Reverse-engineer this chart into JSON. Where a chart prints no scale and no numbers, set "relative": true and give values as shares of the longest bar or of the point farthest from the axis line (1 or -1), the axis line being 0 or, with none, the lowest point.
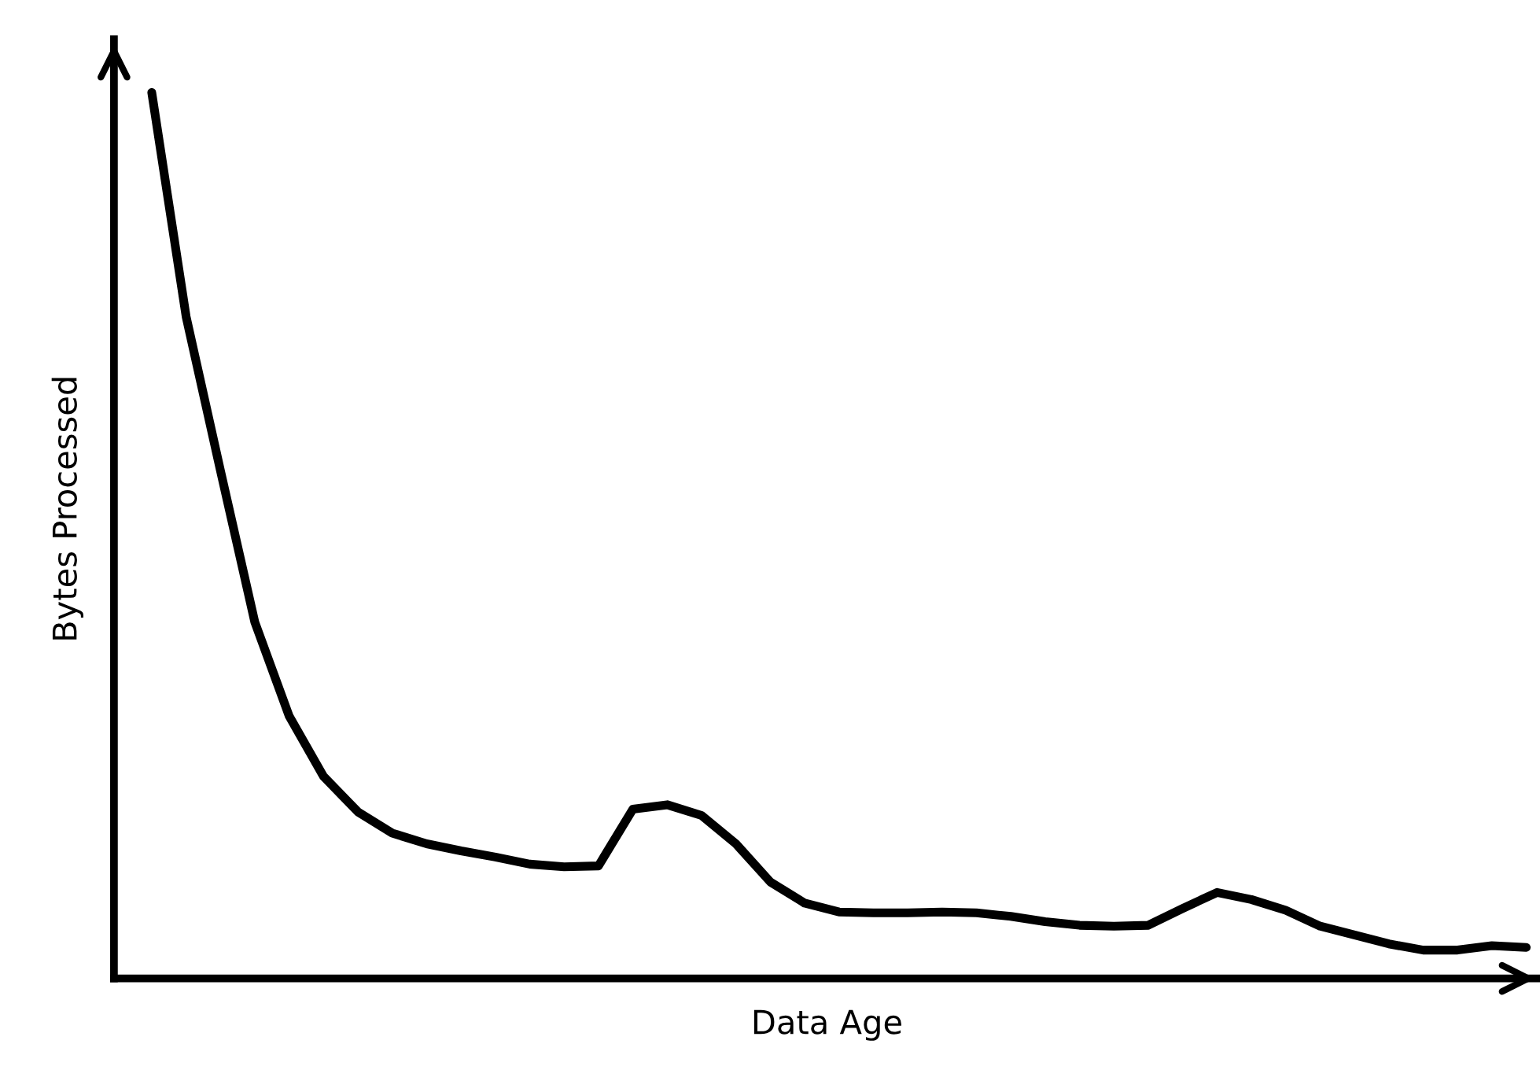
{
  "chart_data": {
    "type": "line",
    "relative": true,
    "xlabel": "Data Age",
    "ylabel": "Bytes Processed",
    "tick_labels": false,
    "grid": false,
    "legend": false,
    "marker": "none",
    "line_style": "solid",
    "categories": [
      null,
      null,
      null,
      null,
      null,
      null,
      null,
      null,
      null,
      null,
      null,
      null,
      null,
      null,
      null,
      null,
      null,
      null,
      null,
      null,
      null,
      null,
      null,
      null,
      null,
      null,
      null,
      null,
      null,
      null,
      null,
      null,
      null,
      null,
      null,
      null,
      null,
      null,
      null,
      null,
      null
    ],
    "series": [
      {
        "color": "#000000",
        "values": [
          1.0,
          0.747,
          0.573,
          0.402,
          0.296,
          0.228,
          0.188,
          0.164,
          0.152,
          0.144,
          0.137,
          0.129,
          0.126,
          0.127,
          0.191,
          0.196,
          0.184,
          0.152,
          0.109,
          0.085,
          0.075,
          0.074,
          0.074,
          0.075,
          0.074,
          0.07,
          0.064,
          0.06,
          0.059,
          0.06,
          0.079,
          0.097,
          0.089,
          0.077,
          0.059,
          0.049,
          0.039,
          0.032,
          0.032,
          0.037,
          0.035
        ]
      }
    ]
  }
}
